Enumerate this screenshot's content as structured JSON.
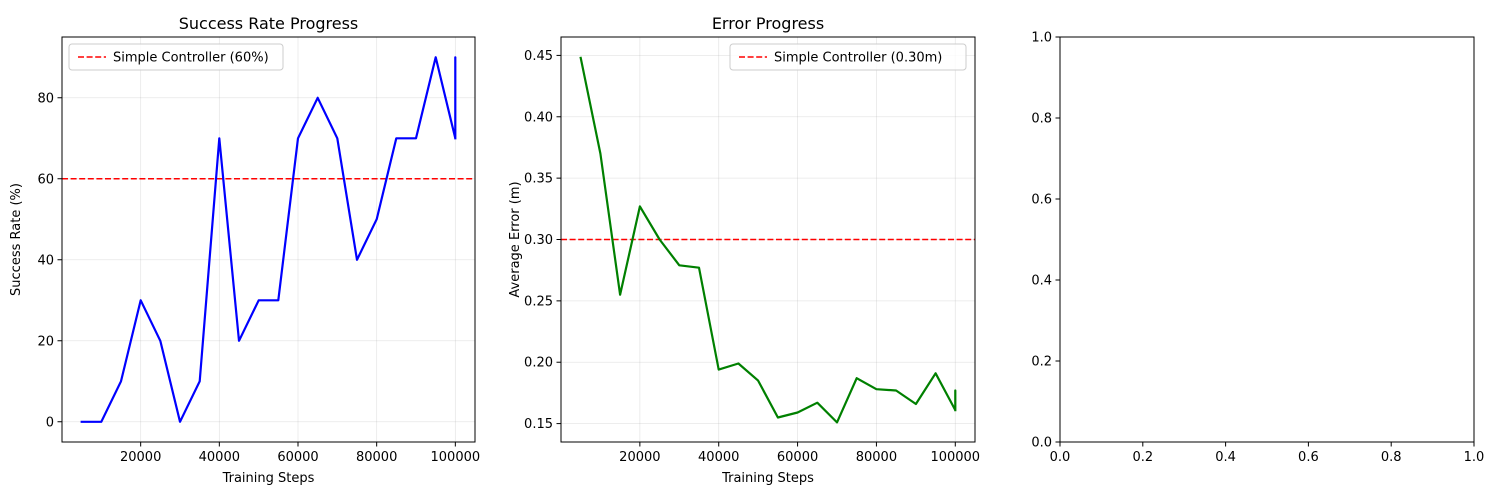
{
  "chart_data": [
    {
      "type": "line",
      "title": "Success Rate Progress",
      "xlabel": "Training Steps",
      "ylabel": "Success Rate (%)",
      "xlim": [
        0,
        105000
      ],
      "ylim": [
        -5,
        95
      ],
      "xticks": [
        20000,
        40000,
        60000,
        80000,
        100000
      ],
      "yticks": [
        0,
        20,
        40,
        60,
        80
      ],
      "grid": true,
      "legend_position": "top-left",
      "series": [
        {
          "color": "#0000ff",
          "x": [
            5000,
            10000,
            15000,
            20000,
            25000,
            30000,
            35000,
            40000,
            45000,
            50000,
            55000,
            60000,
            65000,
            70000,
            75000,
            80000,
            85000,
            90000,
            95000,
            100000,
            100000,
            100000
          ],
          "y": [
            0,
            0,
            10,
            30,
            20,
            0,
            10,
            70,
            20,
            30,
            30,
            70,
            80,
            70,
            40,
            50,
            70,
            70,
            90,
            70,
            90,
            70
          ]
        }
      ],
      "reference_line": {
        "name": "Simple Controller (60%)",
        "y": 60,
        "color": "#ff0000",
        "style": "dashed"
      }
    },
    {
      "type": "line",
      "title": "Error Progress",
      "xlabel": "Training Steps",
      "ylabel": "Average Error (m)",
      "xlim": [
        0,
        105000
      ],
      "ylim": [
        0.135,
        0.465
      ],
      "xticks": [
        20000,
        40000,
        60000,
        80000,
        100000
      ],
      "yticks": [
        0.15,
        0.2,
        0.25,
        0.3,
        0.35,
        0.4,
        0.45
      ],
      "grid": true,
      "legend_position": "top-right",
      "series": [
        {
          "color": "#008000",
          "x": [
            5000,
            10000,
            15000,
            20000,
            25000,
            30000,
            35000,
            40000,
            45000,
            50000,
            55000,
            60000,
            65000,
            70000,
            75000,
            80000,
            85000,
            90000,
            95000,
            100000,
            100000,
            100000
          ],
          "y": [
            0.448,
            0.37,
            0.255,
            0.327,
            0.3,
            0.279,
            0.277,
            0.194,
            0.199,
            0.185,
            0.155,
            0.159,
            0.167,
            0.151,
            0.187,
            0.178,
            0.177,
            0.166,
            0.191,
            0.161,
            0.177,
            0.161
          ]
        }
      ],
      "reference_line": {
        "name": "Simple Controller (0.30m)",
        "y": 0.3,
        "color": "#ff0000",
        "style": "dashed"
      }
    },
    {
      "type": "line",
      "title": "",
      "xlabel": "",
      "ylabel": "",
      "xlim": [
        0,
        1
      ],
      "ylim": [
        0,
        1
      ],
      "xticks": [
        0,
        0.2,
        0.4,
        0.6,
        0.8,
        1
      ],
      "yticks": [
        0,
        0.2,
        0.4,
        0.6,
        0.8,
        1
      ],
      "grid": false,
      "series": []
    }
  ]
}
